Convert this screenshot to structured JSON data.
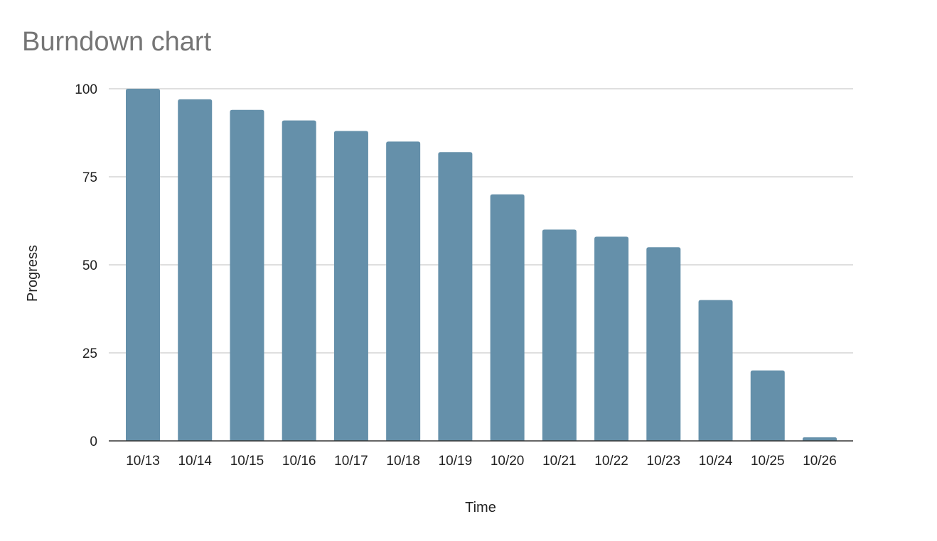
{
  "chart_data": {
    "type": "bar",
    "title": "Burndown chart",
    "xlabel": "Time",
    "ylabel": "Progress",
    "categories": [
      "10/13",
      "10/14",
      "10/15",
      "10/16",
      "10/17",
      "10/18",
      "10/19",
      "10/20",
      "10/21",
      "10/22",
      "10/23",
      "10/24",
      "10/25",
      "10/26"
    ],
    "values": [
      100,
      97,
      94,
      91,
      88,
      85,
      82,
      70,
      60,
      58,
      55,
      40,
      20,
      1
    ],
    "ylim": [
      0,
      100
    ],
    "yticks": [
      0,
      25,
      50,
      75,
      100
    ],
    "grid": true,
    "legend": "none",
    "bar_color": "#6590aa",
    "grid_color": "#cccccc",
    "axis_color": "#333333"
  }
}
